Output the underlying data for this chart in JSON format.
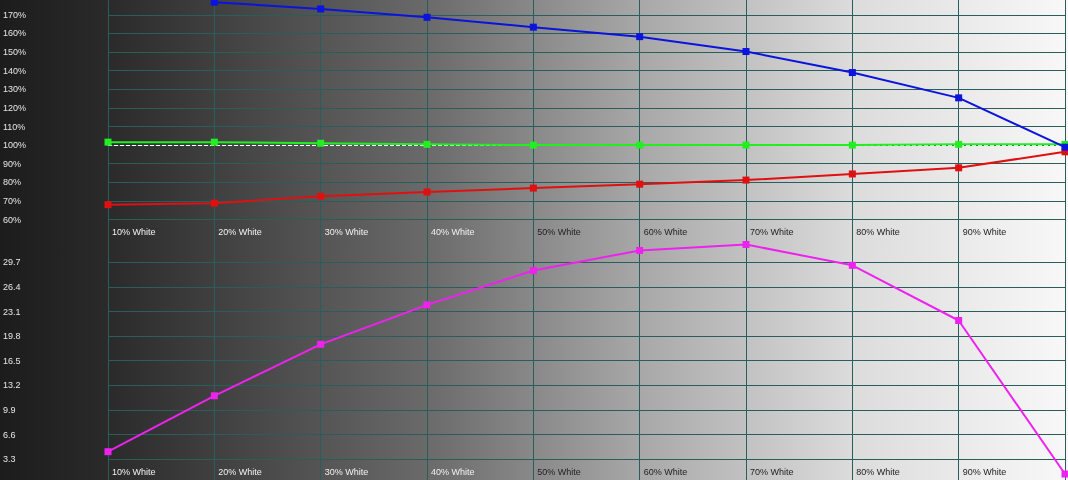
{
  "chart_data": [
    {
      "type": "line",
      "categories": [
        "10% White",
        "20% White",
        "30% White",
        "40% White",
        "50% White",
        "60% White",
        "70% White",
        "80% White",
        "90% White",
        null
      ],
      "series": [
        {
          "color": "#0a14dc",
          "values": [
            null,
            176.8,
            173.2,
            168.7,
            163.4,
            158.3,
            150.3,
            139,
            125.4,
            98.9
          ]
        },
        {
          "color": "#22ee22",
          "values": [
            101.6,
            101.6,
            101,
            100.4,
            100,
            100,
            100,
            100,
            100.4,
            100.4
          ]
        },
        {
          "color": "#e01010",
          "values": [
            68,
            68.8,
            72.5,
            74.8,
            76.9,
            79,
            81.2,
            84.5,
            87.8,
            96.4
          ]
        }
      ],
      "ylim": [
        49,
        178
      ],
      "yticks": [
        {
          "value": 60,
          "label": "60%"
        },
        {
          "value": 70,
          "label": "70%"
        },
        {
          "value": 80,
          "label": "80%"
        },
        {
          "value": 90,
          "label": "90%"
        },
        {
          "value": 100,
          "label": "100%"
        },
        {
          "value": 110,
          "label": "110%"
        },
        {
          "value": 120,
          "label": "120%"
        },
        {
          "value": 130,
          "label": "130%"
        },
        {
          "value": 140,
          "label": "140%"
        },
        {
          "value": 150,
          "label": "150%"
        },
        {
          "value": 160,
          "label": "160%"
        },
        {
          "value": 170,
          "label": "170%"
        }
      ],
      "ref_lines": [
        {
          "axis": "y",
          "value": 100,
          "color": "#ffffff",
          "line_style": "dashed"
        }
      ],
      "grid": true,
      "marker": "square",
      "line_style": "solid"
    },
    {
      "type": "line",
      "categories": [
        "10% White",
        "20% White",
        "30% White",
        "40% White",
        "50% White",
        "60% White",
        "70% White",
        "80% White",
        "90% White",
        null
      ],
      "series": [
        {
          "color": "#ee22ee",
          "values": [
            4.3,
            11.8,
            18.7,
            24,
            28.6,
            31.3,
            32.1,
            29.3,
            21.9,
            1.3
          ]
        }
      ],
      "ylim": [
        0.5,
        32.7
      ],
      "yticks": [
        3.3,
        6.6,
        9.9,
        13.2,
        16.5,
        19.8,
        23.1,
        26.4,
        29.7
      ],
      "grid": true,
      "marker": "square",
      "line_style": "solid"
    }
  ]
}
